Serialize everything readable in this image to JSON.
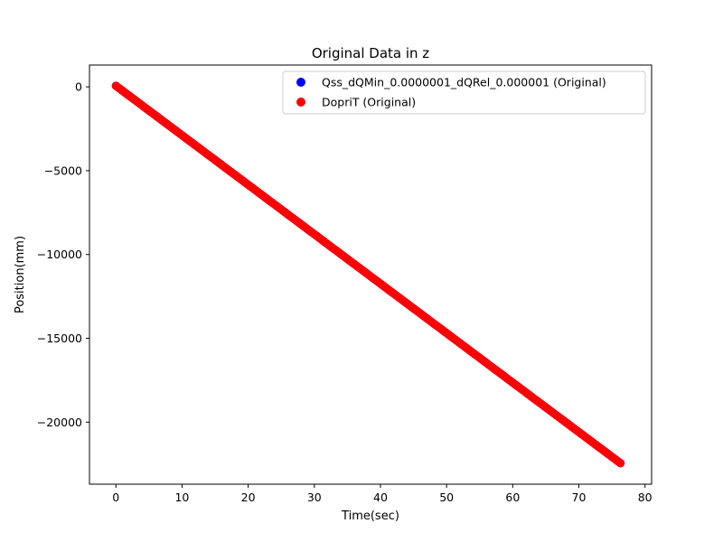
{
  "chart_data": {
    "type": "scatter",
    "title": "Original Data in z",
    "xlabel": "Time(sec)",
    "ylabel": "Position(mm)",
    "xlim": [
      -4,
      81
    ],
    "ylim": [
      -23700,
      1300
    ],
    "xticks": [
      0,
      10,
      20,
      30,
      40,
      50,
      60,
      70,
      80
    ],
    "yticks": [
      0,
      -5000,
      -10000,
      -15000,
      -20000
    ],
    "xtick_labels": [
      "0",
      "10",
      "20",
      "30",
      "40",
      "50",
      "60",
      "70",
      "80"
    ],
    "ytick_labels": [
      "0",
      "−5000",
      "−10000",
      "−15000",
      "−20000"
    ],
    "legend_position": "upper-right",
    "series": [
      {
        "name": "Qss_dQMin_0.0000001_dQRel_0.000001 (Original)",
        "color": "#0000ff",
        "marker": "circle",
        "x_range": [
          0,
          76.3
        ],
        "y_range": [
          60,
          -22450
        ]
      },
      {
        "name": "DopriT (Original)",
        "color": "#ff0000",
        "marker": "circle",
        "x_range": [
          0,
          76.3
        ],
        "y_range": [
          60,
          -22450
        ]
      }
    ]
  }
}
